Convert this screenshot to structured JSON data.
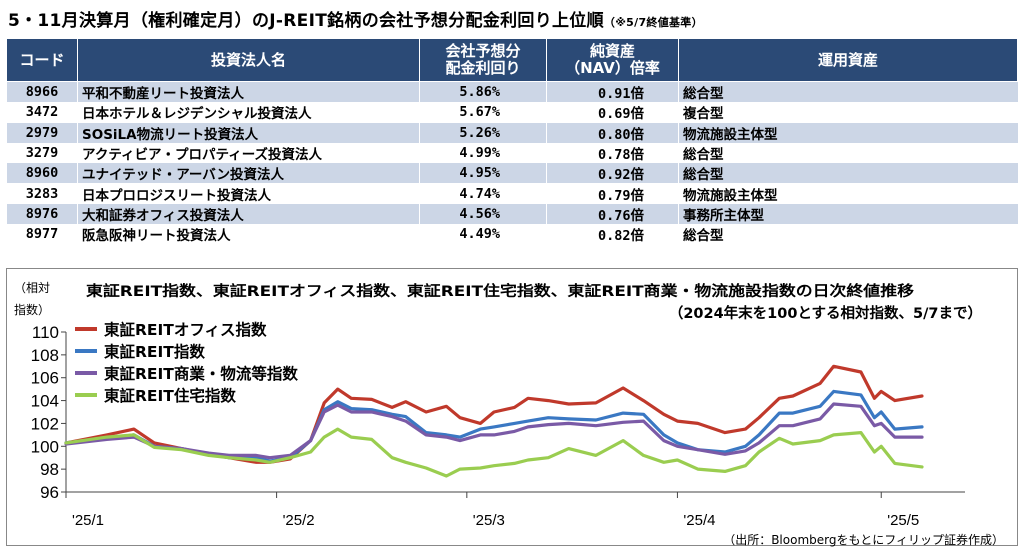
{
  "header": {
    "title": "5・11月決算月（権利確定月）のJ-REIT銘柄の会社予想分配金利回り上位順",
    "note": "（※5/7終値基準）"
  },
  "table": {
    "columns": [
      "コード",
      "投資法人名",
      "会社予想分配金利回り",
      "純資産（NAV）倍率",
      "運用資産"
    ],
    "col_lines": [
      [
        "コード"
      ],
      [
        "投資法人名"
      ],
      [
        "会社予想分",
        "配金利回り"
      ],
      [
        "純資産",
        "（NAV）倍率"
      ],
      [
        "運用資産"
      ]
    ],
    "rows": [
      {
        "code": "8966",
        "name": "平和不動産リート投資法人",
        "yield": "5.86%",
        "nav": "0.91倍",
        "asset": "総合型"
      },
      {
        "code": "3472",
        "name": "日本ホテル＆レジデンシャル投資法人",
        "yield": "5.67%",
        "nav": "0.69倍",
        "asset": "複合型"
      },
      {
        "code": "2979",
        "name": "SOSiLA物流リート投資法人",
        "yield": "5.26%",
        "nav": "0.80倍",
        "asset": "物流施設主体型"
      },
      {
        "code": "3279",
        "name": "アクティビア・プロパティーズ投資法人",
        "yield": "4.99%",
        "nav": "0.78倍",
        "asset": "総合型"
      },
      {
        "code": "8960",
        "name": "ユナイテッド・アーバン投資法人",
        "yield": "4.95%",
        "nav": "0.92倍",
        "asset": "総合型"
      },
      {
        "code": "3283",
        "name": "日本プロロジスリート投資法人",
        "yield": "4.74%",
        "nav": "0.79倍",
        "asset": "物流施設主体型"
      },
      {
        "code": "8976",
        "name": "大和証券オフィス投資法人",
        "yield": "4.56%",
        "nav": "0.76倍",
        "asset": "事務所主体型"
      },
      {
        "code": "8977",
        "name": "阪急阪神リート投資法人",
        "yield": "4.49%",
        "nav": "0.82倍",
        "asset": "総合型"
      }
    ]
  },
  "chart_data": {
    "type": "line",
    "title": "東証REIT指数、東証REITオフィス指数、東証REIT住宅指数、東証REIT商業・物流施設指数の日次終値推移",
    "subtitle": "（2024年末を100とする相対指数、5/7まで）",
    "ylabel": [
      "（相対",
      "指数）"
    ],
    "ylim": [
      96,
      110
    ],
    "yticks": [
      96,
      98,
      100,
      102,
      104,
      106,
      108,
      110
    ],
    "x_range": [
      "2025-01-01",
      "2025-05-07"
    ],
    "xticks": [
      {
        "label": "'25/1",
        "date": "2025-01-01"
      },
      {
        "label": "'25/2",
        "date": "2025-02-01"
      },
      {
        "label": "'25/3",
        "date": "2025-03-01"
      },
      {
        "label": "'25/4",
        "date": "2025-04-01"
      },
      {
        "label": "'25/5",
        "date": "2025-05-01"
      }
    ],
    "source": "（出所：Bloombergをもとにフィリップ証券作成）",
    "legend_position": "top-left",
    "series": [
      {
        "name": "東証REITオフィス指数",
        "color": "#c0392b",
        "points": [
          [
            "2025-01-01",
            100.3
          ],
          [
            "2025-01-07",
            101.0
          ],
          [
            "2025-01-11",
            101.5
          ],
          [
            "2025-01-14",
            100.3
          ],
          [
            "2025-01-18",
            99.8
          ],
          [
            "2025-01-22",
            99.3
          ],
          [
            "2025-01-25",
            99.0
          ],
          [
            "2025-01-29",
            98.6
          ],
          [
            "2025-01-31",
            98.6
          ],
          [
            "2025-02-03",
            98.9
          ],
          [
            "2025-02-06",
            100.5
          ],
          [
            "2025-02-08",
            103.8
          ],
          [
            "2025-02-10",
            105.0
          ],
          [
            "2025-02-12",
            104.2
          ],
          [
            "2025-02-15",
            104.1
          ],
          [
            "2025-02-18",
            103.4
          ],
          [
            "2025-02-20",
            103.9
          ],
          [
            "2025-02-23",
            103.0
          ],
          [
            "2025-02-26",
            103.5
          ],
          [
            "2025-02-28",
            102.5
          ],
          [
            "2025-03-03",
            102.0
          ],
          [
            "2025-03-05",
            103.0
          ],
          [
            "2025-03-08",
            103.4
          ],
          [
            "2025-03-10",
            104.2
          ],
          [
            "2025-03-13",
            104.0
          ],
          [
            "2025-03-16",
            103.7
          ],
          [
            "2025-03-20",
            103.8
          ],
          [
            "2025-03-24",
            105.1
          ],
          [
            "2025-03-27",
            104.0
          ],
          [
            "2025-03-30",
            102.8
          ],
          [
            "2025-04-01",
            102.2
          ],
          [
            "2025-04-04",
            102.0
          ],
          [
            "2025-04-08",
            101.2
          ],
          [
            "2025-04-11",
            101.5
          ],
          [
            "2025-04-13",
            102.5
          ],
          [
            "2025-04-16",
            104.2
          ],
          [
            "2025-04-18",
            104.4
          ],
          [
            "2025-04-22",
            105.5
          ],
          [
            "2025-04-24",
            107.0
          ],
          [
            "2025-04-28",
            106.5
          ],
          [
            "2025-04-30",
            104.2
          ],
          [
            "2025-05-01",
            104.8
          ],
          [
            "2025-05-03",
            104.0
          ],
          [
            "2025-05-07",
            104.4
          ]
        ]
      },
      {
        "name": "東証REIT指数",
        "color": "#3a78c3",
        "points": [
          [
            "2025-01-01",
            100.3
          ],
          [
            "2025-01-07",
            100.7
          ],
          [
            "2025-01-11",
            101.0
          ],
          [
            "2025-01-14",
            100.0
          ],
          [
            "2025-01-18",
            99.8
          ],
          [
            "2025-01-22",
            99.3
          ],
          [
            "2025-01-25",
            99.0
          ],
          [
            "2025-01-29",
            99.0
          ],
          [
            "2025-01-31",
            98.7
          ],
          [
            "2025-02-03",
            99.0
          ],
          [
            "2025-02-06",
            100.5
          ],
          [
            "2025-02-08",
            103.2
          ],
          [
            "2025-02-10",
            103.9
          ],
          [
            "2025-02-12",
            103.3
          ],
          [
            "2025-02-15",
            103.2
          ],
          [
            "2025-02-18",
            102.8
          ],
          [
            "2025-02-20",
            102.6
          ],
          [
            "2025-02-23",
            101.2
          ],
          [
            "2025-02-26",
            101.0
          ],
          [
            "2025-02-28",
            100.8
          ],
          [
            "2025-03-03",
            101.5
          ],
          [
            "2025-03-05",
            101.7
          ],
          [
            "2025-03-08",
            102.0
          ],
          [
            "2025-03-10",
            102.2
          ],
          [
            "2025-03-13",
            102.5
          ],
          [
            "2025-03-16",
            102.4
          ],
          [
            "2025-03-20",
            102.3
          ],
          [
            "2025-03-24",
            102.9
          ],
          [
            "2025-03-27",
            102.8
          ],
          [
            "2025-03-30",
            101.0
          ],
          [
            "2025-04-01",
            100.3
          ],
          [
            "2025-04-04",
            99.7
          ],
          [
            "2025-04-08",
            99.5
          ],
          [
            "2025-04-11",
            100.0
          ],
          [
            "2025-04-13",
            101.0
          ],
          [
            "2025-04-16",
            102.9
          ],
          [
            "2025-04-18",
            102.9
          ],
          [
            "2025-04-22",
            103.5
          ],
          [
            "2025-04-24",
            104.8
          ],
          [
            "2025-04-28",
            104.5
          ],
          [
            "2025-04-30",
            102.5
          ],
          [
            "2025-05-01",
            103.0
          ],
          [
            "2025-05-03",
            101.5
          ],
          [
            "2025-05-07",
            101.7
          ]
        ]
      },
      {
        "name": "東証REIT商業・物流等指数",
        "color": "#7a5aa6",
        "points": [
          [
            "2025-01-01",
            100.2
          ],
          [
            "2025-01-07",
            100.6
          ],
          [
            "2025-01-11",
            100.8
          ],
          [
            "2025-01-14",
            100.0
          ],
          [
            "2025-01-18",
            99.8
          ],
          [
            "2025-01-22",
            99.4
          ],
          [
            "2025-01-25",
            99.2
          ],
          [
            "2025-01-29",
            99.2
          ],
          [
            "2025-01-31",
            99.0
          ],
          [
            "2025-02-03",
            99.2
          ],
          [
            "2025-02-06",
            100.5
          ],
          [
            "2025-02-08",
            103.0
          ],
          [
            "2025-02-10",
            103.6
          ],
          [
            "2025-02-12",
            103.0
          ],
          [
            "2025-02-15",
            103.0
          ],
          [
            "2025-02-18",
            102.6
          ],
          [
            "2025-02-20",
            102.2
          ],
          [
            "2025-02-23",
            101.0
          ],
          [
            "2025-02-26",
            100.8
          ],
          [
            "2025-02-28",
            100.5
          ],
          [
            "2025-03-03",
            101.0
          ],
          [
            "2025-03-05",
            101.0
          ],
          [
            "2025-03-08",
            101.3
          ],
          [
            "2025-03-10",
            101.7
          ],
          [
            "2025-03-13",
            101.9
          ],
          [
            "2025-03-16",
            102.0
          ],
          [
            "2025-03-20",
            101.8
          ],
          [
            "2025-03-24",
            102.1
          ],
          [
            "2025-03-27",
            102.2
          ],
          [
            "2025-03-30",
            100.5
          ],
          [
            "2025-04-01",
            100.0
          ],
          [
            "2025-04-04",
            99.7
          ],
          [
            "2025-04-08",
            99.3
          ],
          [
            "2025-04-11",
            99.6
          ],
          [
            "2025-04-13",
            100.3
          ],
          [
            "2025-04-16",
            101.8
          ],
          [
            "2025-04-18",
            101.8
          ],
          [
            "2025-04-22",
            102.4
          ],
          [
            "2025-04-24",
            103.7
          ],
          [
            "2025-04-28",
            103.5
          ],
          [
            "2025-04-30",
            101.8
          ],
          [
            "2025-05-01",
            102.0
          ],
          [
            "2025-05-03",
            100.8
          ],
          [
            "2025-05-07",
            100.8
          ]
        ]
      },
      {
        "name": "東証REIT住宅指数",
        "color": "#9acd50",
        "points": [
          [
            "2025-01-01",
            100.3
          ],
          [
            "2025-01-07",
            100.8
          ],
          [
            "2025-01-11",
            101.0
          ],
          [
            "2025-01-14",
            99.9
          ],
          [
            "2025-01-18",
            99.7
          ],
          [
            "2025-01-22",
            99.2
          ],
          [
            "2025-01-25",
            99.0
          ],
          [
            "2025-01-29",
            98.8
          ],
          [
            "2025-01-31",
            98.6
          ],
          [
            "2025-02-03",
            99.0
          ],
          [
            "2025-02-06",
            99.5
          ],
          [
            "2025-02-08",
            100.8
          ],
          [
            "2025-02-10",
            101.5
          ],
          [
            "2025-02-12",
            100.8
          ],
          [
            "2025-02-15",
            100.6
          ],
          [
            "2025-02-18",
            99.0
          ],
          [
            "2025-02-20",
            98.6
          ],
          [
            "2025-02-23",
            98.1
          ],
          [
            "2025-02-26",
            97.4
          ],
          [
            "2025-02-28",
            98.0
          ],
          [
            "2025-03-03",
            98.1
          ],
          [
            "2025-03-05",
            98.3
          ],
          [
            "2025-03-08",
            98.5
          ],
          [
            "2025-03-10",
            98.8
          ],
          [
            "2025-03-13",
            99.0
          ],
          [
            "2025-03-16",
            99.8
          ],
          [
            "2025-03-20",
            99.2
          ],
          [
            "2025-03-24",
            100.5
          ],
          [
            "2025-03-27",
            99.2
          ],
          [
            "2025-03-30",
            98.6
          ],
          [
            "2025-04-01",
            98.8
          ],
          [
            "2025-04-04",
            98.0
          ],
          [
            "2025-04-08",
            97.8
          ],
          [
            "2025-04-11",
            98.3
          ],
          [
            "2025-04-13",
            99.5
          ],
          [
            "2025-04-16",
            100.7
          ],
          [
            "2025-04-18",
            100.2
          ],
          [
            "2025-04-22",
            100.5
          ],
          [
            "2025-04-24",
            101.0
          ],
          [
            "2025-04-28",
            101.2
          ],
          [
            "2025-04-30",
            99.5
          ],
          [
            "2025-05-01",
            100.0
          ],
          [
            "2025-05-03",
            98.5
          ],
          [
            "2025-05-07",
            98.2
          ]
        ]
      }
    ]
  }
}
